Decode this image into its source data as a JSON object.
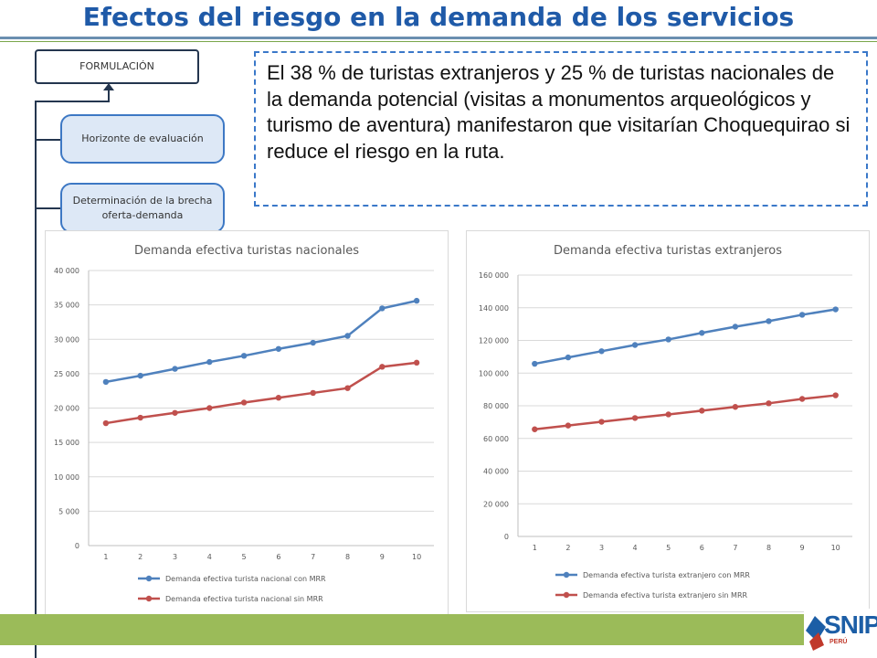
{
  "slide": {
    "title": "Efectos del riesgo en la demanda de los servicios",
    "body_text": "El 38 % de turistas extranjeros y 25 % de turistas nacionales de la demanda potencial (visitas a monumentos arqueológicos y turismo de aventura) manifestaron que visitarían Choquequirao si reduce el riesgo en la ruta.",
    "colors": {
      "title": "#1f5aa8",
      "accent_green": "#9bbb59",
      "dashed_border": "#3a78c9"
    }
  },
  "flow": {
    "formulacion": "FORMULACIÓN",
    "steps": [
      "Horizonte de evaluación",
      "Determinación de la brecha oferta-demanda"
    ]
  },
  "logo": {
    "text": "SNIP",
    "sub": "PERÚ"
  },
  "chart_data": [
    {
      "type": "line",
      "title": "Demanda efectiva turistas nacionales",
      "x": [
        1,
        2,
        3,
        4,
        5,
        6,
        7,
        8,
        9,
        10
      ],
      "ylim": [
        0,
        40000
      ],
      "yticks": [
        0,
        5000,
        10000,
        15000,
        20000,
        25000,
        30000,
        35000,
        40000
      ],
      "legend": "bottom",
      "grid": true,
      "series": [
        {
          "name": "Demanda efectiva turista nacional con MRR",
          "color": "#4f81bd",
          "values": [
            23800,
            24700,
            25700,
            26700,
            27600,
            28600,
            29500,
            30500,
            34500,
            35600
          ]
        },
        {
          "name": "Demanda efectiva turista nacional sin MRR",
          "color": "#c0504d",
          "values": [
            17800,
            18600,
            19300,
            20000,
            20800,
            21500,
            22200,
            22900,
            26000,
            26600
          ]
        }
      ]
    },
    {
      "type": "line",
      "title": "Demanda efectiva turistas extranjeros",
      "x": [
        1,
        2,
        3,
        4,
        5,
        6,
        7,
        8,
        9,
        10
      ],
      "ylim": [
        0,
        160000
      ],
      "yticks": [
        0,
        20000,
        40000,
        60000,
        80000,
        100000,
        120000,
        140000,
        160000
      ],
      "legend": "bottom",
      "grid": true,
      "series": [
        {
          "name": "Demanda efectiva turista extranjero con MRR",
          "color": "#4f81bd",
          "values": [
            105700,
            109600,
            113400,
            117200,
            120600,
            124600,
            128400,
            131800,
            135700,
            139000
          ]
        },
        {
          "name": "Demanda efectiva turista extranjero sin MRR",
          "color": "#c0504d",
          "values": [
            65600,
            67900,
            70200,
            72500,
            74700,
            77000,
            79300,
            81500,
            84200,
            86400
          ]
        }
      ]
    }
  ]
}
